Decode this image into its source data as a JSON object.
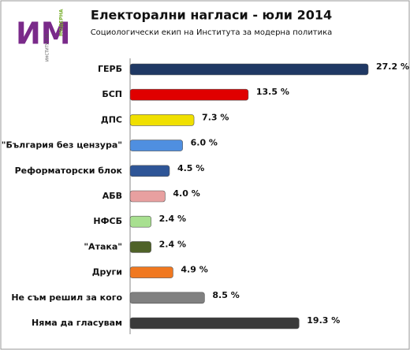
{
  "chart_data": {
    "type": "hbar",
    "title": "Електорални нагласи - юли 2014",
    "subtitle": "Социологически екип на Института за модерна политика",
    "categories": [
      "ГЕРБ",
      "БСП",
      "ДПС",
      "\"България без цензура\"",
      "Реформаторски блок",
      "АБВ",
      "НФСБ",
      "\"Атака\"",
      "Други",
      "Не съм решил за кого",
      "Няма да гласувам"
    ],
    "values": [
      27.2,
      13.5,
      7.3,
      6.0,
      4.5,
      4.0,
      2.4,
      2.4,
      4.9,
      8.5,
      19.3
    ],
    "value_labels": [
      "27.2 %",
      "13.5 %",
      "7.3 %",
      "6.0 %",
      "4.5 %",
      "4.0 %",
      "2.4 %",
      "2.4 %",
      "4.9 %",
      "8.5 %",
      "19.3 %"
    ],
    "colors": [
      "#1f3864",
      "#e00000",
      "#f0e000",
      "#4f8fe0",
      "#2e5597",
      "#e8a0a0",
      "#a8e090",
      "#4f6228",
      "#f07820",
      "#808080",
      "#3a3a3a"
    ]
  },
  "logo": {
    "letters": "ИМ",
    "word": "МОДЕРНА",
    "side": "ИНСТИТУТ ЗА"
  }
}
